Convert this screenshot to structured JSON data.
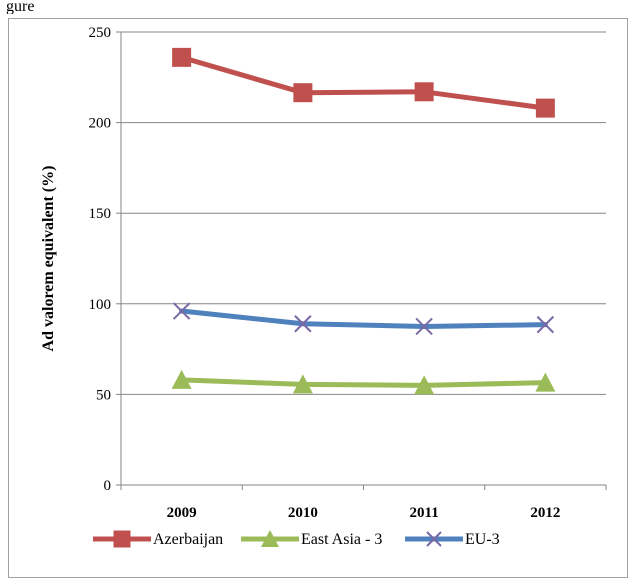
{
  "top_fragment": "gure",
  "chart_data": {
    "type": "line",
    "title": "",
    "xlabel": "",
    "ylabel": "Ad valorem equivalent (%)",
    "categories": [
      "2009",
      "2010",
      "2011",
      "2012"
    ],
    "ylim": [
      0,
      250
    ],
    "yticks": [
      0,
      50,
      100,
      150,
      200,
      250
    ],
    "grid": true,
    "legend_position": "bottom",
    "series": [
      {
        "name": "Azerbaijan",
        "values": [
          236,
          216.5,
          217,
          208
        ],
        "color": "#c0504d",
        "marker": "square"
      },
      {
        "name": "East Asia - 3",
        "values": [
          58,
          55.5,
          55,
          56.5
        ],
        "color": "#9bbb59",
        "marker": "triangle"
      },
      {
        "name": "EU-3",
        "values": [
          96,
          89,
          87.5,
          88.5
        ],
        "color": "#4f81bd",
        "marker": "x"
      }
    ]
  }
}
